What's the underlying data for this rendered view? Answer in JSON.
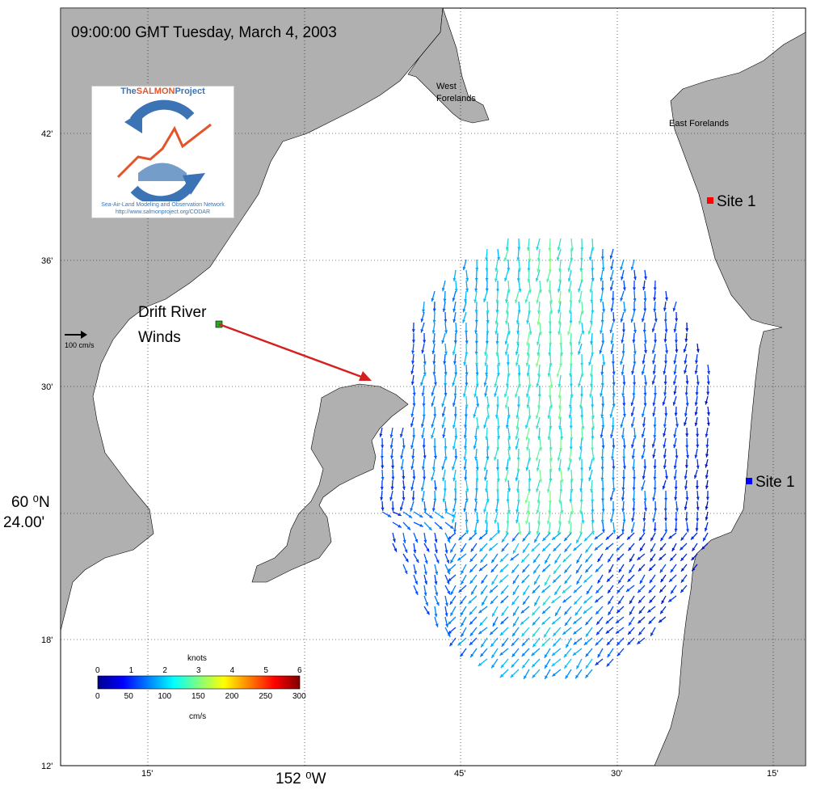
{
  "title": "09:00:00 GMT Tuesday, March 4, 2003",
  "logo": {
    "name_part1": "The",
    "name_part2": "SALMON",
    "name_part3": "Project",
    "subtitle": "Sea-Air-Land Modeling and Observation Network",
    "url": "http://www.salmonproject.org/CODAR"
  },
  "places": {
    "west_forelands_1": "West",
    "west_forelands_2": "Forelands",
    "east_forelands": "East Forelands",
    "drift_1": "Drift River",
    "drift_2": "Winds"
  },
  "sites": {
    "north": "Site 1",
    "south": "Site 1",
    "north_color": "#ff0000",
    "south_color": "#0000ff"
  },
  "scale": {
    "label": "100 cm/s"
  },
  "y_ticks": [
    "42'",
    "36'",
    "30'",
    "18'",
    "12'"
  ],
  "x_ticks": [
    "15'",
    "45'",
    "30'",
    "15'"
  ],
  "lat_label_1": "60 ⁰N",
  "lat_label_2": "24.00'",
  "lon_label": "152 ⁰W",
  "colorbar": {
    "title": "knots",
    "knots": [
      "0",
      "1",
      "2",
      "3",
      "4",
      "5",
      "6"
    ],
    "cms": [
      "0",
      "50",
      "100",
      "150",
      "200",
      "250",
      "300"
    ],
    "unit": "cm/s"
  },
  "colors": {
    "land": "#b0b0b0",
    "wind_arrow": "#d42020",
    "drift_marker": "#22aa22"
  }
}
